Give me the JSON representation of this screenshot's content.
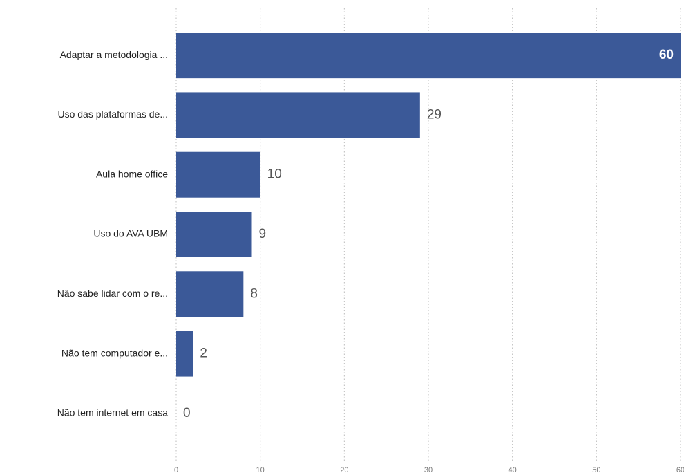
{
  "chart_data": {
    "type": "bar",
    "orientation": "horizontal",
    "categories": [
      "Adaptar a metodologia ...",
      "Uso das plataformas de...",
      "Aula home office",
      "Uso do AVA UBM",
      "Não sabe lidar com o re...",
      "Não tem computador e...",
      "Não tem internet em casa"
    ],
    "values": [
      60,
      29,
      10,
      9,
      8,
      2,
      0
    ],
    "color": "#3b5998",
    "xlim": [
      0,
      60
    ],
    "xticks": [
      0,
      10,
      20,
      30,
      40,
      50,
      60
    ],
    "grid": true
  }
}
